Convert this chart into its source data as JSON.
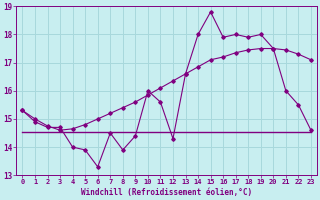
{
  "xlabel": "Windchill (Refroidissement éolien,°C)",
  "x_hours": [
    0,
    1,
    2,
    3,
    4,
    5,
    6,
    7,
    8,
    9,
    10,
    11,
    12,
    13,
    14,
    15,
    16,
    17,
    18,
    19,
    20,
    21,
    22,
    23
  ],
  "line1_y": [
    15.3,
    14.9,
    14.7,
    14.7,
    14.0,
    13.9,
    13.3,
    14.5,
    13.9,
    14.4,
    16.0,
    15.6,
    14.3,
    16.6,
    18.0,
    18.8,
    17.9,
    18.0,
    17.9,
    18.0,
    17.5,
    16.0,
    15.5,
    14.6
  ],
  "line2_y": [
    14.55,
    14.55,
    14.55,
    14.55,
    14.55,
    14.55,
    14.55,
    14.55,
    14.55,
    14.55,
    14.55,
    14.55,
    14.55,
    14.55,
    14.55,
    14.55,
    14.55,
    14.55,
    14.55,
    14.55,
    14.55,
    14.55,
    14.55,
    14.55
  ],
  "line3_y": [
    15.3,
    15.0,
    14.75,
    14.6,
    14.65,
    14.8,
    15.0,
    15.2,
    15.4,
    15.6,
    15.85,
    16.1,
    16.35,
    16.6,
    16.85,
    17.1,
    17.2,
    17.35,
    17.45,
    17.5,
    17.5,
    17.45,
    17.3,
    17.1
  ],
  "line_color": "#800080",
  "bg_color": "#c8eef0",
  "grid_color": "#a8d8dc",
  "ylim": [
    13,
    19
  ],
  "xlim": [
    -0.5,
    23.5
  ],
  "yticks": [
    13,
    14,
    15,
    16,
    17,
    18,
    19
  ],
  "xticks": [
    0,
    1,
    2,
    3,
    4,
    5,
    6,
    7,
    8,
    9,
    10,
    11,
    12,
    13,
    14,
    15,
    16,
    17,
    18,
    19,
    20,
    21,
    22,
    23
  ]
}
